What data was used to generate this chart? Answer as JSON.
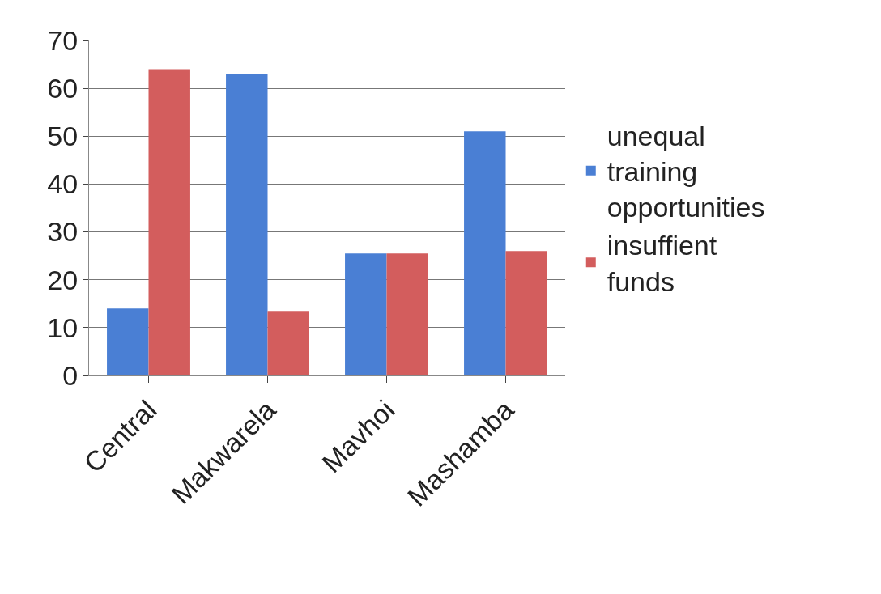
{
  "chart_data": {
    "type": "bar",
    "categories": [
      "Central",
      "Makwarela",
      "Mavhoi",
      "Mashamba"
    ],
    "series": [
      {
        "name": "unequal training opportunities",
        "color": "#4a7fd4",
        "values": [
          14,
          63,
          25.5,
          51
        ]
      },
      {
        "name": "insuffient funds",
        "color": "#d35d5d",
        "values": [
          64,
          13.5,
          25.5,
          26
        ]
      }
    ],
    "ylim": [
      0,
      70
    ],
    "yticks": [
      0,
      10,
      20,
      30,
      40,
      50,
      60,
      70
    ],
    "grid": "y",
    "legend": "right"
  }
}
